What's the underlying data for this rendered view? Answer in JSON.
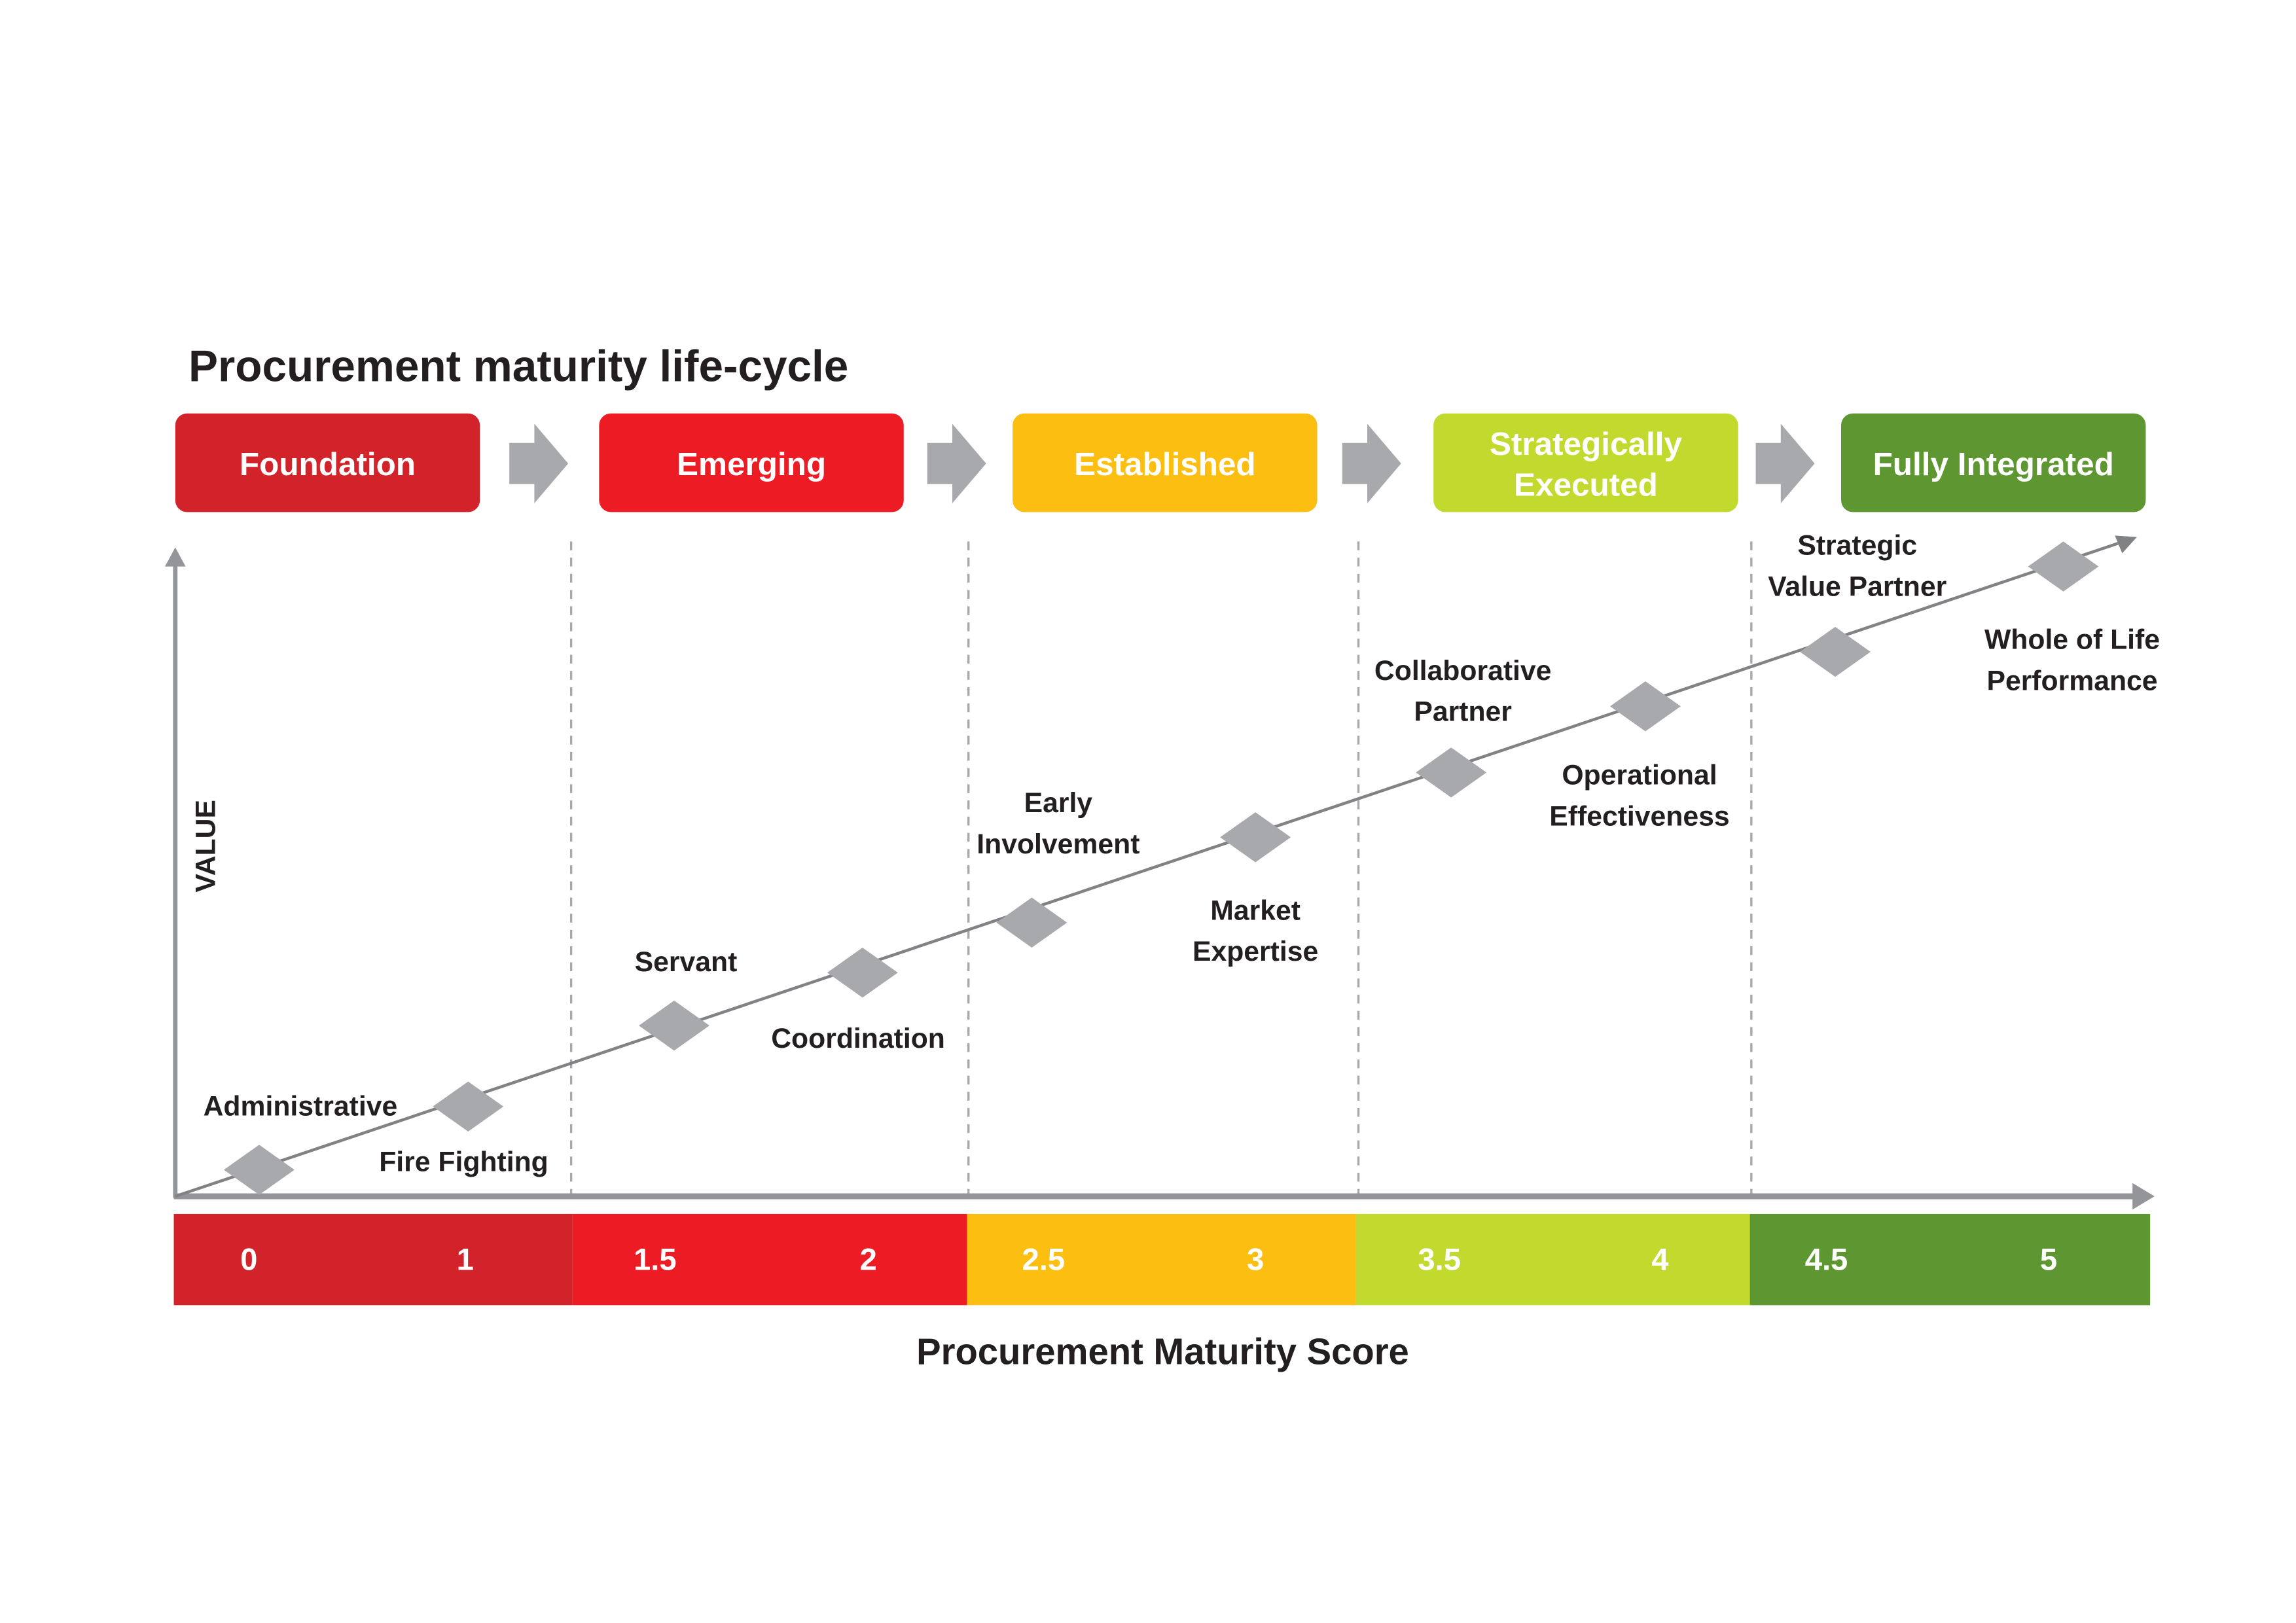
{
  "title": "Procurement maturity life-cycle",
  "y_axis_label": "VALUE",
  "x_axis_label": "Procurement Maturity Score",
  "colors": {
    "foundation": "#d2232a",
    "emerging": "#ed1c24",
    "established": "#fdbe12",
    "strategically_executed": "#c2d92e",
    "fully_integrated": "#5e9732",
    "gray": "#a7a9ac",
    "axis": "#939598"
  },
  "stages": [
    {
      "lines": [
        "Foundation"
      ],
      "color": "#d2232a"
    },
    {
      "lines": [
        "Emerging"
      ],
      "color": "#ed1c24"
    },
    {
      "lines": [
        "Established"
      ],
      "color": "#fdbe12"
    },
    {
      "lines": [
        "Strategically",
        "Executed"
      ],
      "color": "#c2d92e"
    },
    {
      "lines": [
        "Fully Integrated"
      ],
      "color": "#5e9732"
    }
  ],
  "score_bands": [
    {
      "scores": [
        "0",
        "1"
      ],
      "color": "#d2232a"
    },
    {
      "scores": [
        "1.5",
        "2"
      ],
      "color": "#ed1c24"
    },
    {
      "scores": [
        "2.5",
        "3"
      ],
      "color": "#fdbe12"
    },
    {
      "scores": [
        "3.5",
        "4"
      ],
      "color": "#c2d92e"
    },
    {
      "scores": [
        "4.5",
        "5"
      ],
      "color": "#5e9732"
    }
  ],
  "milestones": [
    {
      "lines": [
        "Administrative"
      ],
      "label_pos": "above"
    },
    {
      "lines": [
        "Fire Fighting"
      ],
      "label_pos": "below"
    },
    {
      "lines": [
        "Servant"
      ],
      "label_pos": "above"
    },
    {
      "lines": [
        "Coordination"
      ],
      "label_pos": "below"
    },
    {
      "lines": [
        "Early",
        "Involvement"
      ],
      "label_pos": "above"
    },
    {
      "lines": [
        "Market",
        "Expertise"
      ],
      "label_pos": "below"
    },
    {
      "lines": [
        "Collaborative",
        "Partner"
      ],
      "label_pos": "above"
    },
    {
      "lines": [
        "Operational",
        "Effectiveness"
      ],
      "label_pos": "below"
    },
    {
      "lines": [
        "Strategic",
        "Value Partner"
      ],
      "label_pos": "above"
    },
    {
      "lines": [
        "Whole of Life",
        "Performance"
      ],
      "label_pos": "below"
    }
  ]
}
